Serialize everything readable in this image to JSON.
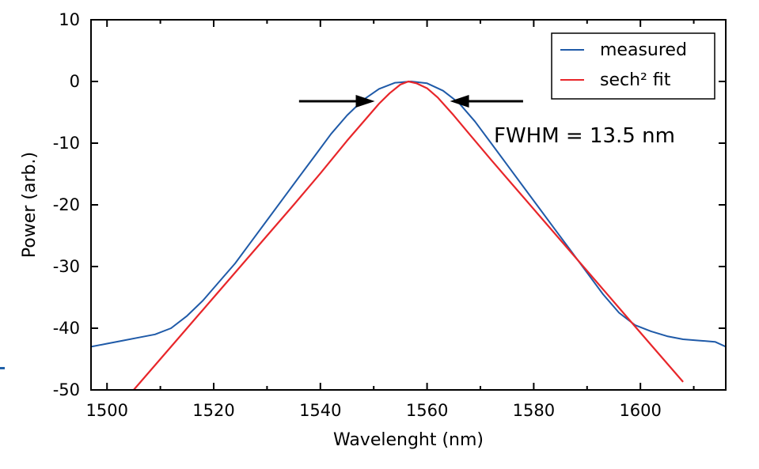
{
  "chart_data": {
    "type": "line",
    "xlabel": "Wavelenght (nm)",
    "ylabel": "Power (arb.)",
    "xlim": [
      1497,
      1616
    ],
    "ylim": [
      -50,
      10
    ],
    "xticks": [
      1500,
      1520,
      1540,
      1560,
      1580,
      1600
    ],
    "yticks": [
      10,
      0,
      -10,
      -20,
      -30,
      -40,
      -50
    ],
    "legend_position": "top-right",
    "grid": false,
    "series": [
      {
        "name": "measured",
        "color": "#1f5aa8",
        "x": [
          1497,
          1500,
          1503,
          1506,
          1509,
          1512,
          1515,
          1518,
          1521,
          1524,
          1527,
          1530,
          1533,
          1536,
          1539,
          1542,
          1545,
          1548,
          1551,
          1554,
          1557,
          1560,
          1563,
          1566,
          1569,
          1572,
          1575,
          1578,
          1581,
          1584,
          1587,
          1590,
          1593,
          1596,
          1599,
          1602,
          1605,
          1608,
          1611,
          1614,
          1616
        ],
        "y": [
          -43,
          -42.5,
          -42,
          -41.5,
          -41,
          -40,
          -38,
          -35.5,
          -32.5,
          -29.5,
          -26,
          -22.5,
          -19,
          -15.5,
          -12,
          -8.5,
          -5.5,
          -3,
          -1.2,
          -0.2,
          0,
          -0.3,
          -1.5,
          -3.5,
          -6.5,
          -10,
          -13.5,
          -17,
          -20.5,
          -24,
          -27.5,
          -31,
          -34.5,
          -37.5,
          -39.5,
          -40.5,
          -41.3,
          -41.8,
          -42,
          -42.2,
          -43
        ]
      },
      {
        "name": "sech² fit",
        "color": "#e8262a",
        "x": [
          1505,
          1510,
          1515,
          1520,
          1525,
          1530,
          1535,
          1540,
          1545,
          1548,
          1551,
          1553,
          1555,
          1556.5,
          1558,
          1560,
          1562,
          1565,
          1568,
          1572,
          1577,
          1582,
          1587,
          1592,
          1597,
          1602,
          1608
        ],
        "y": [
          -50,
          -45,
          -40,
          -35,
          -30,
          -25,
          -20,
          -14.9,
          -9.6,
          -6.6,
          -3.6,
          -1.9,
          -0.5,
          0,
          -0.3,
          -1.1,
          -2.6,
          -5.5,
          -8.6,
          -12.7,
          -17.7,
          -22.7,
          -27.7,
          -32.7,
          -37.7,
          -42.7,
          -48.7
        ]
      }
    ],
    "annotations": [
      {
        "text": "FWHM = 13.5 nm",
        "x": 1573,
        "y": -9
      }
    ],
    "arrows": [
      {
        "from": [
          1536,
          -3.2
        ],
        "to": [
          1550.2,
          -3.2
        ]
      },
      {
        "from": [
          1578,
          -3.2
        ],
        "to": [
          1564.3,
          -3.2
        ]
      }
    ]
  }
}
